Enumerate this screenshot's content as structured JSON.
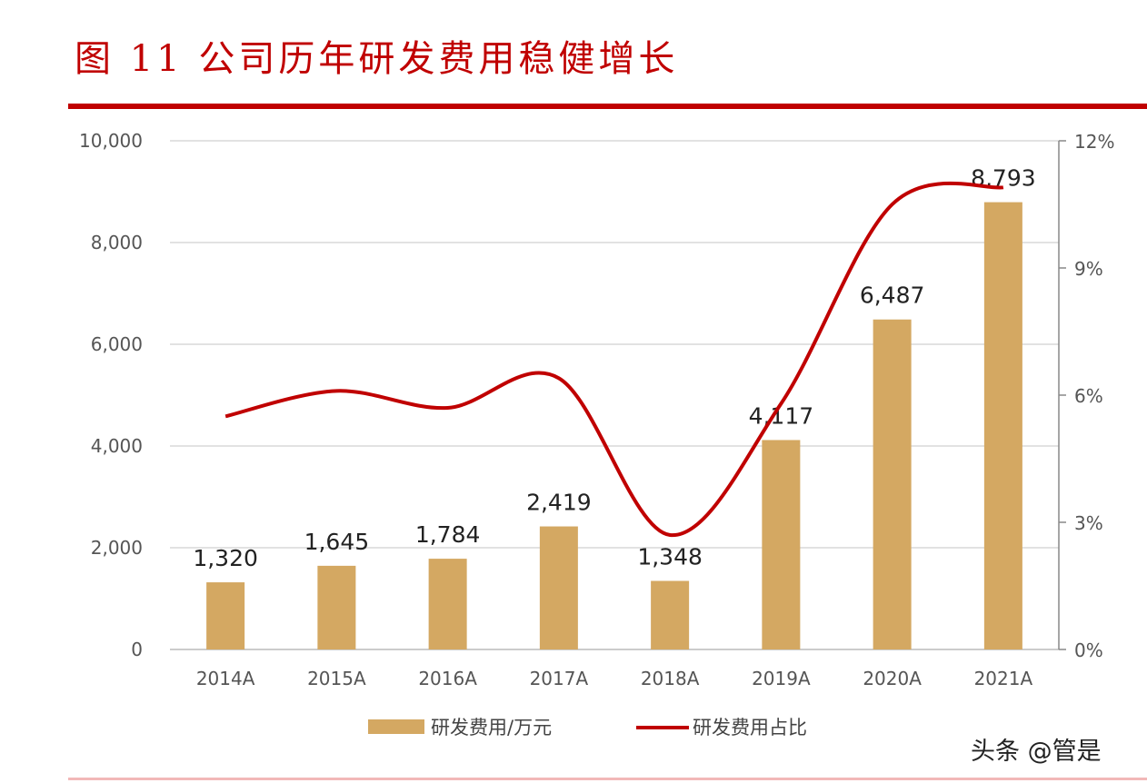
{
  "title": "图 11 公司历年研发费用稳健增长",
  "watermark": "头条 @管是",
  "chart_data": {
    "type": "bar+line",
    "categories": [
      "2014A",
      "2015A",
      "2016A",
      "2017A",
      "2018A",
      "2019A",
      "2020A",
      "2021A"
    ],
    "series": [
      {
        "name": "研发费用/万元",
        "type": "bar",
        "axis": "left",
        "color": "#d4a862",
        "values": [
          1320,
          1645,
          1784,
          2419,
          1348,
          4117,
          6487,
          8793
        ],
        "labels": [
          "1,320",
          "1,645",
          "1,784",
          "2,419",
          "1,348",
          "4,117",
          "6,487",
          "8,793"
        ]
      },
      {
        "name": "研发费用占比",
        "type": "line",
        "axis": "right",
        "color": "#c00000",
        "values": [
          5.5,
          6.1,
          5.7,
          6.4,
          2.7,
          5.8,
          10.5,
          10.9
        ]
      }
    ],
    "ylim_left": [
      0,
      10000
    ],
    "yticks_left": [
      "0",
      "2,000",
      "4,000",
      "6,000",
      "8,000",
      "10,000"
    ],
    "ylim_right": [
      0,
      12
    ],
    "yticks_right": [
      "0%",
      "3%",
      "6%",
      "9%",
      "12%"
    ],
    "grid": true,
    "legend": "bottom"
  }
}
